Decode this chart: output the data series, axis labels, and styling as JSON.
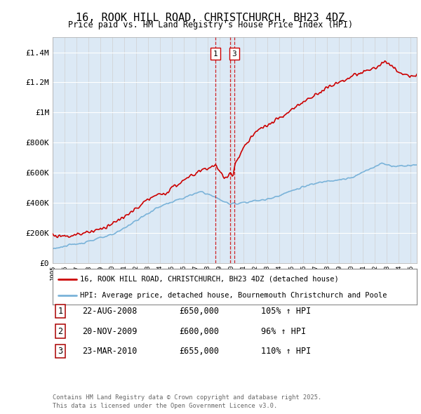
{
  "title": "16, ROOK HILL ROAD, CHRISTCHURCH, BH23 4DZ",
  "subtitle": "Price paid vs. HM Land Registry's House Price Index (HPI)",
  "bg_color": "#dce9f5",
  "hpi_color": "#7ab3d9",
  "price_color": "#cc0000",
  "vline_color": "#cc0000",
  "ylim": [
    0,
    1500000
  ],
  "yticks": [
    0,
    200000,
    400000,
    600000,
    800000,
    1000000,
    1200000,
    1400000
  ],
  "ytick_labels": [
    "£0",
    "£200K",
    "£400K",
    "£600K",
    "£800K",
    "£1M",
    "£1.2M",
    "£1.4M"
  ],
  "transactions": [
    {
      "num": 1,
      "date": "22-AUG-2008",
      "price": 650000,
      "price_str": "£650,000",
      "hpi_pct": "105%",
      "direction": "↑",
      "x_year": 2008.64
    },
    {
      "num": 2,
      "date": "20-NOV-2009",
      "price": 600000,
      "price_str": "£600,000",
      "hpi_pct": "96%",
      "direction": "↑",
      "x_year": 2009.89
    },
    {
      "num": 3,
      "date": "23-MAR-2010",
      "price": 655000,
      "price_str": "£655,000",
      "hpi_pct": "110%",
      "direction": "↑",
      "x_year": 2010.22
    }
  ],
  "legend_line1": "16, ROOK HILL ROAD, CHRISTCHURCH, BH23 4DZ (detached house)",
  "legend_line2": "HPI: Average price, detached house, Bournemouth Christchurch and Poole",
  "footer1": "Contains HM Land Registry data © Crown copyright and database right 2025.",
  "footer2": "This data is licensed under the Open Government Licence v3.0.",
  "xlim_start": 1995.0,
  "xlim_end": 2025.5
}
